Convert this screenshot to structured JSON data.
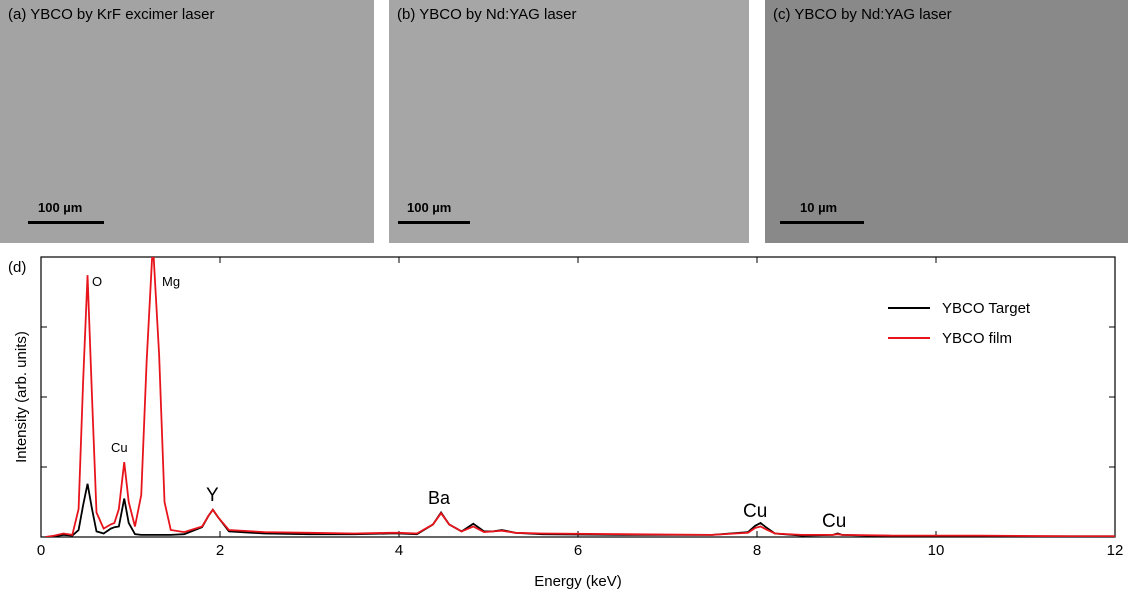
{
  "panels": [
    {
      "label": "(a) YBCO by KrF excimer laser",
      "scale_bar": "100 µm"
    },
    {
      "label": "(b) YBCO by Nd:YAG laser",
      "scale_bar": "100 µm"
    },
    {
      "label": "(c) YBCO by Nd:YAG laser",
      "scale_bar": "10 µm"
    }
  ],
  "chart_data": {
    "type": "line",
    "panel_label": "(d)",
    "xlabel": "Energy (keV)",
    "ylabel": "Intensity (arb. units)",
    "x": [
      0.05,
      0.15,
      0.25,
      0.35,
      0.42,
      0.47,
      0.52,
      0.57,
      0.62,
      0.7,
      0.78,
      0.82,
      0.87,
      0.93,
      0.98,
      1.05,
      1.12,
      1.18,
      1.25,
      1.32,
      1.38,
      1.45,
      1.6,
      1.8,
      1.87,
      1.92,
      1.98,
      2.1,
      2.5,
      3.0,
      3.5,
      3.9,
      4.0,
      4.2,
      4.38,
      4.47,
      4.56,
      4.7,
      4.83,
      4.95,
      5.05,
      5.15,
      5.3,
      5.6,
      6.5,
      7.5,
      7.9,
      7.98,
      8.04,
      8.1,
      8.2,
      8.5,
      8.85,
      8.9,
      8.95,
      9.5,
      10.5,
      11.5,
      12.0
    ],
    "series": [
      {
        "name": "YBCO Target",
        "color": "#000000",
        "values": [
          0.0,
          0.01,
          0.03,
          0.02,
          0.1,
          0.45,
          0.76,
          0.4,
          0.08,
          0.05,
          0.12,
          0.14,
          0.15,
          0.55,
          0.2,
          0.04,
          0.03,
          0.03,
          0.03,
          0.03,
          0.03,
          0.03,
          0.04,
          0.14,
          0.3,
          0.39,
          0.28,
          0.08,
          0.05,
          0.04,
          0.04,
          0.05,
          0.05,
          0.04,
          0.18,
          0.35,
          0.18,
          0.08,
          0.19,
          0.08,
          0.08,
          0.1,
          0.06,
          0.04,
          0.03,
          0.03,
          0.07,
          0.16,
          0.2,
          0.14,
          0.05,
          0.02,
          0.03,
          0.05,
          0.03,
          0.01,
          0.01,
          0.01,
          0.01
        ]
      },
      {
        "name": "YBCO film",
        "color": "#e8141c",
        "values": [
          0.0,
          0.02,
          0.05,
          0.03,
          0.4,
          2.2,
          3.74,
          2.0,
          0.35,
          0.12,
          0.18,
          0.2,
          0.4,
          1.07,
          0.5,
          0.15,
          0.6,
          2.5,
          4.2,
          2.6,
          0.5,
          0.1,
          0.07,
          0.15,
          0.3,
          0.39,
          0.28,
          0.1,
          0.07,
          0.06,
          0.05,
          0.06,
          0.06,
          0.05,
          0.18,
          0.34,
          0.18,
          0.08,
          0.15,
          0.07,
          0.08,
          0.09,
          0.06,
          0.05,
          0.04,
          0.03,
          0.06,
          0.13,
          0.15,
          0.11,
          0.05,
          0.03,
          0.03,
          0.04,
          0.03,
          0.02,
          0.02,
          0.01,
          0.01
        ]
      }
    ],
    "xlim": [
      0,
      12
    ],
    "xticks": [
      0,
      2,
      4,
      6,
      8,
      10,
      12
    ],
    "ylim": [
      0,
      4
    ],
    "yticks": [
      0,
      1,
      2,
      3,
      4
    ],
    "ytick_labels": false,
    "legend": "upper right",
    "annotations": [
      "O",
      "Mg",
      "Cu",
      "Y",
      "Ba",
      "Cu",
      "Cu"
    ]
  }
}
